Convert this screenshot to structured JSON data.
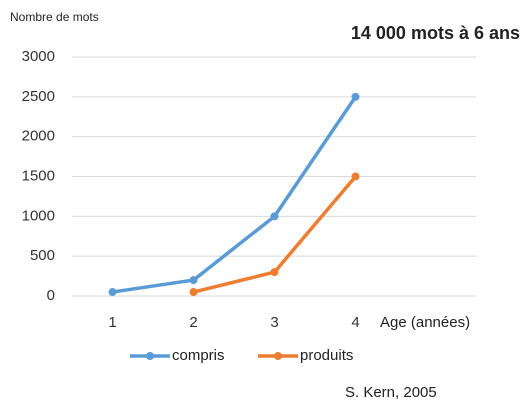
{
  "chart_data": {
    "type": "line",
    "title": "14 000 mots à 6 ans",
    "y_label": "Nombre de mots",
    "x_label": "Age (années)",
    "source": "S. Kern, 2005",
    "categories": [
      "1",
      "2",
      "3",
      "4"
    ],
    "series": [
      {
        "name": "compris",
        "color": "#5b9bd5",
        "values": [
          50,
          200,
          1000,
          2500
        ]
      },
      {
        "name": "produits",
        "color": "#ed7d31",
        "values": [
          null,
          50,
          300,
          1500
        ]
      }
    ],
    "ylim": [
      0,
      3000
    ],
    "yticks": [
      0,
      500,
      1000,
      1500,
      2000,
      2500,
      3000
    ],
    "grid": true
  }
}
